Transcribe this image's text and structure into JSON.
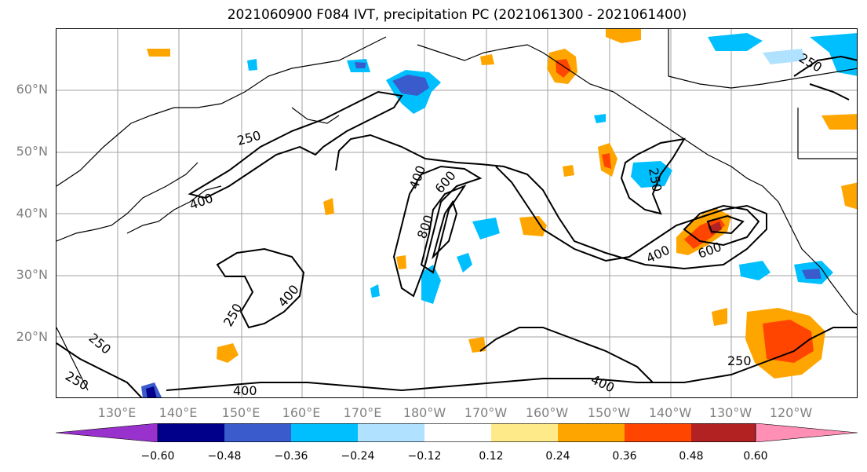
{
  "title": "2021060900 F084 IVT, precipitation PC (2021061300 - 2021061400)",
  "map": {
    "projection": "cylindrical",
    "lon_range": [
      120,
      244
    ],
    "lat_range": [
      10,
      70
    ],
    "gridlines": true,
    "lat_labels": [
      "60°N",
      "50°N",
      "40°N",
      "30°N",
      "20°N"
    ],
    "lon_labels": [
      "130°E",
      "140°E",
      "150°E",
      "160°E",
      "170°E",
      "180°W",
      "170°W",
      "160°W",
      "150°W",
      "140°W",
      "130°W",
      "120°W"
    ],
    "contour_labels": [
      "250",
      "400",
      "600",
      "800",
      "250",
      "400",
      "250",
      "400",
      "600",
      "250",
      "400",
      "250",
      "250",
      "400",
      "400",
      "250"
    ]
  },
  "colorbar": {
    "extend": "both",
    "colors": [
      "#9932cc",
      "#00008b",
      "#3a5bcc",
      "#00bfff",
      "#b0e2ff",
      "#ffffff",
      "#ffea8a",
      "#ffa500",
      "#ff4500",
      "#b22222",
      "#ff8fb4"
    ],
    "tick_labels": [
      "−0.60",
      "−0.48",
      "−0.36",
      "−0.24",
      "−0.12",
      "0.12",
      "0.24",
      "0.36",
      "0.48",
      "0.60"
    ]
  }
}
